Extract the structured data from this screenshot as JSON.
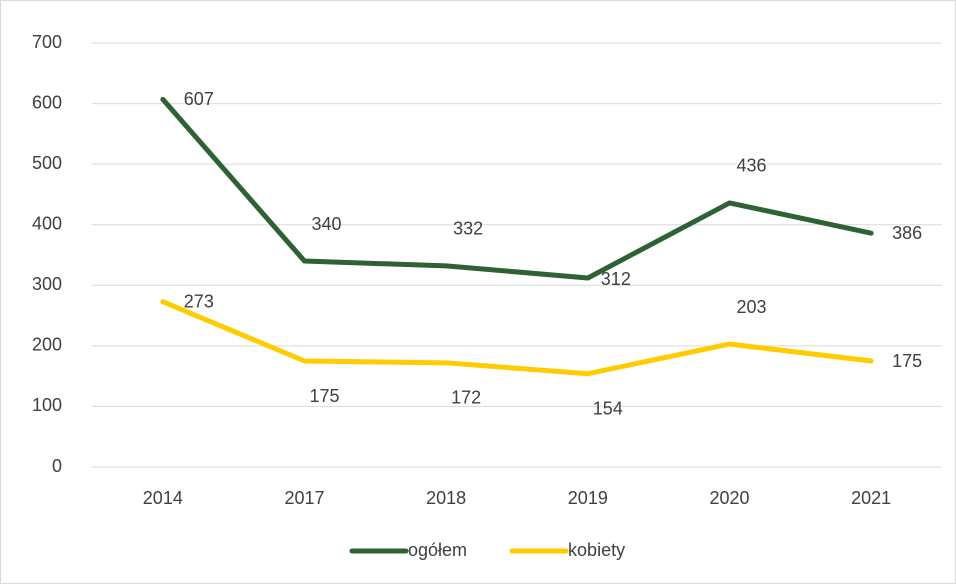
{
  "chart_data": {
    "type": "line",
    "categories": [
      "2014",
      "2017",
      "2018",
      "2019",
      "2020",
      "2021"
    ],
    "series": [
      {
        "name": "ogółem",
        "color": "#2e6234",
        "values": [
          607,
          340,
          332,
          312,
          436,
          386
        ]
      },
      {
        "name": "kobiety",
        "color": "#ffcc00",
        "values": [
          273,
          175,
          172,
          154,
          203,
          175
        ]
      }
    ],
    "ylim": [
      0,
      700
    ],
    "yticks": [
      0,
      100,
      200,
      300,
      400,
      500,
      600,
      700
    ],
    "grid": true,
    "legend": "bottom"
  }
}
